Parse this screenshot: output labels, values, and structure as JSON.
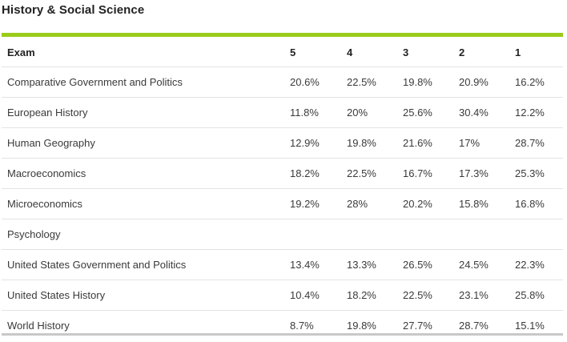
{
  "section": {
    "title": "History & Social Science"
  },
  "table": {
    "headers": [
      "Exam",
      "5",
      "4",
      "3",
      "2",
      "1"
    ],
    "rows": [
      {
        "exam": "Comparative Government and Politics",
        "s5": "20.6%",
        "s4": "22.5%",
        "s3": "19.8%",
        "s2": "20.9%",
        "s1": "16.2%"
      },
      {
        "exam": "European History",
        "s5": "11.8%",
        "s4": "20%",
        "s3": "25.6%",
        "s2": "30.4%",
        "s1": "12.2%"
      },
      {
        "exam": "Human Geography",
        "s5": "12.9%",
        "s4": "19.8%",
        "s3": "21.6%",
        "s2": "17%",
        "s1": "28.7%"
      },
      {
        "exam": "Macroeconomics",
        "s5": "18.2%",
        "s4": "22.5%",
        "s3": "16.7%",
        "s2": "17.3%",
        "s1": "25.3%"
      },
      {
        "exam": "Microeconomics",
        "s5": "19.2%",
        "s4": "28%",
        "s3": "20.2%",
        "s2": "15.8%",
        "s1": "16.8%"
      },
      {
        "exam": "Psychology",
        "s5": "",
        "s4": "",
        "s3": "",
        "s2": "",
        "s1": ""
      },
      {
        "exam": "United States Government and Politics",
        "s5": "13.4%",
        "s4": "13.3%",
        "s3": "26.5%",
        "s2": "24.5%",
        "s1": "22.3%"
      },
      {
        "exam": "United States History",
        "s5": "10.4%",
        "s4": "18.2%",
        "s3": "22.5%",
        "s2": "23.1%",
        "s1": "25.8%"
      },
      {
        "exam": "World History",
        "s5": "8.7%",
        "s4": "19.8%",
        "s3": "27.7%",
        "s2": "28.7%",
        "s1": "15.1%"
      }
    ]
  },
  "colors": {
    "accent": "#99cc1a",
    "row_divider": "#e3e3e3",
    "bottom_rule": "#c8c8c8"
  }
}
